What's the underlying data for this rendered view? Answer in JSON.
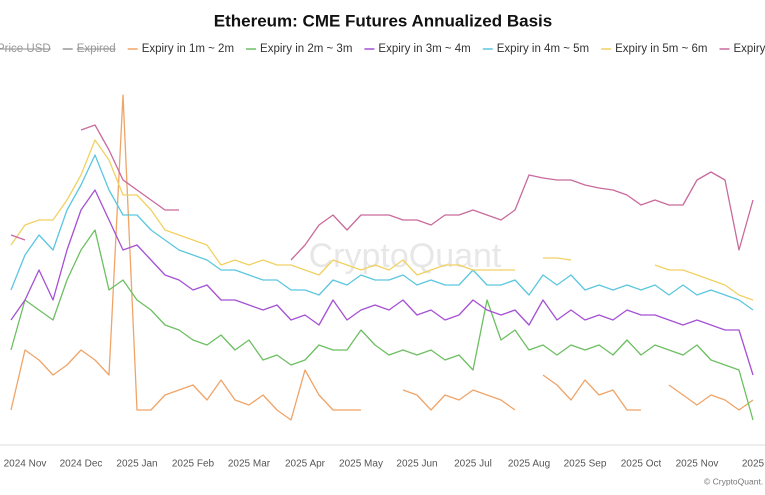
{
  "chart_data": {
    "type": "line",
    "title": "Ethereum: CME Futures Annualized Basis",
    "legend_hidden": [
      "Price USD",
      "Expired"
    ],
    "watermark": "CryptoQuant",
    "credit": "© CryptoQuant. All righ",
    "categories": [
      null,
      "2024 Nov",
      null,
      null,
      null,
      "2024 Dec",
      null,
      null,
      null,
      "2025 Jan",
      null,
      null,
      null,
      "2025 Feb",
      null,
      null,
      null,
      "2025 Mar",
      null,
      null,
      null,
      "2025 Apr",
      null,
      null,
      null,
      "2025 May",
      null,
      null,
      null,
      "2025 Jun",
      null,
      null,
      null,
      "2025 Jul",
      null,
      null,
      null,
      "2025 Aug",
      null,
      null,
      null,
      "2025 Sep",
      null,
      null,
      null,
      "2025 Oct",
      null,
      null,
      null,
      "2025 Nov",
      null,
      null,
      null,
      "2025"
    ],
    "ylim": [
      0,
      35
    ],
    "series": [
      {
        "name": "Expiry in 1m ~ 2m",
        "color": "#efa468",
        "values": [
          2,
          8,
          7,
          5.5,
          6.5,
          8,
          7,
          5.5,
          33.5,
          2,
          2,
          3.5,
          4,
          4.5,
          3,
          5,
          3,
          2.5,
          3.5,
          2,
          1,
          6,
          3.5,
          2,
          2,
          2,
          null,
          null,
          4,
          3.5,
          2,
          3.5,
          3,
          4,
          3.5,
          3,
          2,
          null,
          5.5,
          4.5,
          3,
          5,
          3.5,
          4,
          2,
          2,
          null,
          4.5,
          3.5,
          2.5,
          3.5,
          3,
          2,
          3
        ]
      },
      {
        "name": "Expiry in 2m ~ 3m",
        "color": "#6dbf62",
        "values": [
          8,
          13,
          12,
          11,
          15,
          18,
          20,
          14,
          15,
          13,
          12,
          10.5,
          10,
          9,
          8.5,
          9.5,
          8,
          9,
          7,
          7.5,
          6.5,
          7,
          8.5,
          8,
          8,
          10,
          8.5,
          7.5,
          8,
          7.5,
          8,
          7,
          7.5,
          6,
          13,
          9,
          10,
          8,
          8.5,
          7.5,
          8.5,
          8,
          8.5,
          7.5,
          9,
          7.5,
          8.5,
          8,
          7.5,
          8.5,
          7,
          6.5,
          6,
          1
        ]
      },
      {
        "name": "Expiry in 3m ~ 4m",
        "color": "#a550d4",
        "values": [
          11,
          13,
          16,
          13,
          18,
          22,
          24,
          21,
          18,
          18.5,
          17,
          15.5,
          15,
          14,
          14.5,
          13,
          13,
          12.5,
          12,
          12.5,
          11,
          11.5,
          10.5,
          13,
          11,
          12,
          12.5,
          12,
          13,
          11.5,
          12,
          11,
          11.5,
          13,
          12,
          11.5,
          12,
          10.5,
          13,
          11,
          12,
          11,
          11.5,
          11,
          12,
          11.5,
          11.5,
          11,
          10.5,
          11,
          10.5,
          10,
          10,
          5.5
        ]
      },
      {
        "name": "Expiry in 4m ~ 5m",
        "color": "#5cc6df",
        "values": [
          14,
          17.5,
          19.5,
          18,
          22,
          24.5,
          27.5,
          24,
          21.5,
          21.5,
          20,
          19,
          18,
          17.5,
          17,
          16,
          16,
          15.5,
          15,
          15,
          14,
          14,
          13.5,
          15,
          14.5,
          15.5,
          15,
          15,
          15.5,
          14.5,
          15,
          14.5,
          14.5,
          16,
          14.5,
          14.5,
          15,
          13.5,
          15.5,
          14.5,
          15.5,
          14,
          14.5,
          14,
          14.5,
          14,
          14.5,
          13.5,
          14.5,
          13.5,
          14,
          13.5,
          13,
          12
        ]
      },
      {
        "name": "Expiry in 5m ~ 6m",
        "color": "#f1d163",
        "values": [
          18.5,
          20.5,
          21,
          21,
          23,
          25.5,
          29,
          27,
          23.5,
          23.5,
          22,
          20,
          19.5,
          19,
          18.5,
          16.5,
          17,
          16.5,
          17,
          16.5,
          16.5,
          16,
          15.5,
          17,
          16.5,
          16,
          16.5,
          16,
          17,
          15.5,
          16,
          16.5,
          16.5,
          16,
          16,
          16,
          16,
          null,
          17.2,
          17.2,
          17,
          null,
          null,
          null,
          null,
          null,
          16.5,
          16,
          16,
          15.5,
          15,
          14.5,
          13.5,
          13
        ]
      },
      {
        "name": "Expiry over",
        "color": "#c96a9c",
        "values": [
          19.5,
          19,
          null,
          null,
          null,
          30,
          30.5,
          28,
          25,
          24,
          23,
          22,
          22,
          null,
          null,
          null,
          null,
          null,
          null,
          null,
          17,
          18.5,
          20.5,
          21.5,
          20,
          21.5,
          21.5,
          21.5,
          21,
          21,
          20.5,
          21.5,
          21.5,
          22,
          21.5,
          21,
          22,
          25.5,
          25.2,
          25,
          25,
          24.5,
          24.2,
          24,
          23.5,
          22.5,
          23,
          22.5,
          22.5,
          25,
          25.8,
          25,
          18,
          23
        ]
      }
    ]
  }
}
